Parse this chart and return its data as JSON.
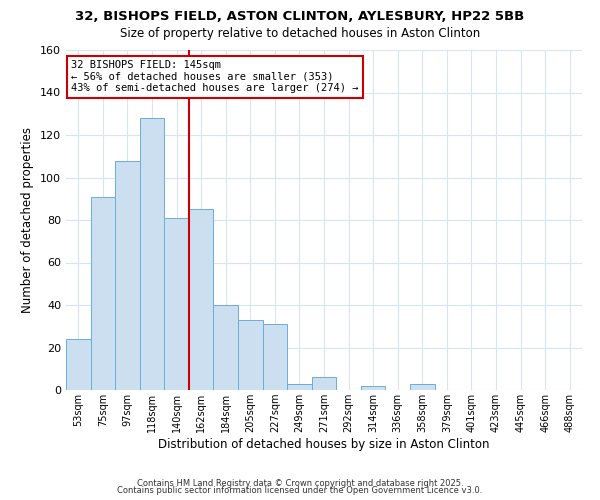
{
  "title1": "32, BISHOPS FIELD, ASTON CLINTON, AYLESBURY, HP22 5BB",
  "title2": "Size of property relative to detached houses in Aston Clinton",
  "xlabel": "Distribution of detached houses by size in Aston Clinton",
  "ylabel": "Number of detached properties",
  "bar_labels": [
    "53sqm",
    "75sqm",
    "97sqm",
    "118sqm",
    "140sqm",
    "162sqm",
    "184sqm",
    "205sqm",
    "227sqm",
    "249sqm",
    "271sqm",
    "292sqm",
    "314sqm",
    "336sqm",
    "358sqm",
    "379sqm",
    "401sqm",
    "423sqm",
    "445sqm",
    "466sqm",
    "488sqm"
  ],
  "bar_heights": [
    24,
    91,
    108,
    128,
    81,
    85,
    40,
    33,
    31,
    3,
    6,
    0,
    2,
    0,
    3,
    0,
    0,
    0,
    0,
    0,
    0
  ],
  "bar_color": "#ccdff0",
  "bar_edge_color": "#6aaed6",
  "vline_x": 4.5,
  "vline_color": "#cc0000",
  "annotation_title": "32 BISHOPS FIELD: 145sqm",
  "annotation_line1": "← 56% of detached houses are smaller (353)",
  "annotation_line2": "43% of semi-detached houses are larger (274) →",
  "annotation_box_color": "#ffffff",
  "annotation_box_edge": "#cc0000",
  "ylim": [
    0,
    160
  ],
  "yticks": [
    0,
    20,
    40,
    60,
    80,
    100,
    120,
    140,
    160
  ],
  "footer1": "Contains HM Land Registry data © Crown copyright and database right 2025.",
  "footer2": "Contains public sector information licensed under the Open Government Licence v3.0.",
  "bg_color": "#ffffff",
  "plot_bg_color": "#ffffff",
  "grid_color": "#d8e4f0",
  "title1_fontsize": 9.5,
  "title2_fontsize": 8.5,
  "xlabel_fontsize": 8.5,
  "ylabel_fontsize": 8.5,
  "xtick_fontsize": 7,
  "ytick_fontsize": 8,
  "annotation_fontsize": 7.5,
  "footer_fontsize": 6
}
